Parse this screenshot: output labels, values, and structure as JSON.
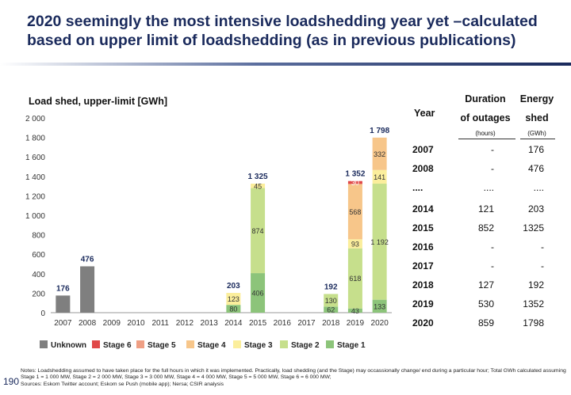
{
  "title": "2020 seemingly the most intensive loadshedding year yet –calculated based on upper limit of loadshedding (as in previous publications)",
  "chart_data": {
    "type": "bar",
    "stacked": true,
    "title": "Load shed, upper-limit [GWh]",
    "ylim": [
      0,
      2000
    ],
    "yticks": [
      0,
      200,
      400,
      600,
      800,
      1000,
      1200,
      1400,
      1600,
      1800,
      2000
    ],
    "ytick_labels": [
      "0",
      "200",
      "400",
      "600",
      "800",
      "1 000",
      "1 200",
      "1 400",
      "1 600",
      "1 800",
      "2 000"
    ],
    "categories": [
      "2007",
      "2008",
      "2009",
      "2010",
      "2011",
      "2012",
      "2013",
      "2014",
      "2015",
      "2016",
      "2017",
      "2018",
      "2019",
      "2020"
    ],
    "series": [
      {
        "name": "Unknown",
        "color": "#7f7f7f",
        "values": [
          176,
          476,
          0,
          0,
          0,
          0,
          0,
          0,
          0,
          0,
          0,
          0,
          0,
          0
        ]
      },
      {
        "name": "Stage 1",
        "color": "#8cc47a",
        "values": [
          0,
          0,
          0,
          0,
          0,
          0,
          0,
          80,
          406,
          0,
          0,
          62,
          43,
          133
        ]
      },
      {
        "name": "Stage 2",
        "color": "#c6df8c",
        "values": [
          0,
          0,
          0,
          0,
          0,
          0,
          0,
          0,
          874,
          0,
          0,
          130,
          618,
          1192
        ]
      },
      {
        "name": "Stage 3",
        "color": "#fbee9c",
        "values": [
          0,
          0,
          0,
          0,
          0,
          0,
          0,
          123,
          45,
          0,
          0,
          0,
          93,
          141
        ]
      },
      {
        "name": "Stage 4",
        "color": "#f7c68a",
        "values": [
          0,
          0,
          0,
          0,
          0,
          0,
          0,
          0,
          0,
          0,
          0,
          0,
          568,
          332
        ]
      },
      {
        "name": "Stage 5",
        "color": "#ef9f84",
        "values": [
          0,
          0,
          0,
          0,
          0,
          0,
          0,
          0,
          0,
          0,
          0,
          0,
          0,
          0
        ]
      },
      {
        "name": "Stage 6",
        "color": "#e04848",
        "values": [
          0,
          0,
          0,
          0,
          0,
          0,
          0,
          0,
          0,
          0,
          0,
          0,
          30,
          0
        ]
      }
    ],
    "segment_labels_shown": {
      "Unknown": [
        176,
        476,
        null,
        null,
        null,
        null,
        null,
        null,
        null,
        null,
        null,
        null,
        null,
        null
      ],
      "Stage 1": [
        null,
        null,
        null,
        null,
        null,
        null,
        null,
        "80",
        "406",
        null,
        null,
        "62",
        "43",
        "133"
      ],
      "Stage 2": [
        null,
        null,
        null,
        null,
        null,
        null,
        null,
        null,
        "874",
        null,
        null,
        "130",
        "618",
        "1 192"
      ],
      "Stage 3": [
        null,
        null,
        null,
        null,
        null,
        null,
        null,
        "123",
        "45",
        null,
        null,
        null,
        "93",
        "141"
      ],
      "Stage 4": [
        null,
        null,
        null,
        null,
        null,
        null,
        null,
        null,
        null,
        null,
        null,
        null,
        "568",
        "332"
      ],
      "Stage 6": [
        null,
        null,
        null,
        null,
        null,
        null,
        null,
        null,
        null,
        null,
        null,
        null,
        "30",
        null
      ]
    },
    "totals": [
      {
        "category": "2007",
        "label": "176"
      },
      {
        "category": "2008",
        "label": "476"
      },
      {
        "category": "2014",
        "label": "203"
      },
      {
        "category": "2015",
        "label": "1 325"
      },
      {
        "category": "2018",
        "label": "192"
      },
      {
        "category": "2019",
        "label": "1 352"
      },
      {
        "category": "2020",
        "label": "1 798"
      }
    ],
    "legend": [
      "Unknown",
      "Stage 6",
      "Stage 5",
      "Stage 4",
      "Stage 3",
      "Stage 2",
      "Stage 1"
    ],
    "legend_position": "bottom"
  },
  "table": {
    "header_year": "Year",
    "header_duration": [
      "Duration",
      "of outages"
    ],
    "header_duration_unit": "(hours)",
    "header_energy": [
      "Energy",
      "shed"
    ],
    "header_energy_unit": "(GWh)",
    "rows": [
      {
        "year": "2007",
        "duration": "-",
        "energy": "176"
      },
      {
        "year": "2008",
        "duration": "-",
        "energy": "476"
      },
      {
        "year": "....",
        "duration": "....",
        "energy": "...."
      },
      {
        "year": "2014",
        "duration": "121",
        "energy": "203"
      },
      {
        "year": "2015",
        "duration": "852",
        "energy": "1325"
      },
      {
        "year": "2016",
        "duration": "-",
        "energy": "-"
      },
      {
        "year": "2017",
        "duration": "-",
        "energy": "-"
      },
      {
        "year": "2018",
        "duration": "127",
        "energy": "192"
      },
      {
        "year": "2019",
        "duration": "530",
        "energy": "1352"
      },
      {
        "year": "2020",
        "duration": "859",
        "energy": "1798"
      }
    ]
  },
  "page_number": "190",
  "notes": "Notes: Loadshedding assumed to have taken place for the full hours in which it was implemented.  Practically, load shedding (and the Stage) may occassionally change/ end during a particular hour; Total GWh calculated assuming Stage 1 = 1 000 MW, Stage 2 = 2 000 MW, Stage 3 = 3 000 MW, Stage 4 = 4 000 MW, Stage 5 = 5 000 MW, Stage 6 = 6 000 MW;",
  "sources": "Sources: Eskom Twitter account; Eskom se Push (mobile app); Nersa; CSIR analysis"
}
